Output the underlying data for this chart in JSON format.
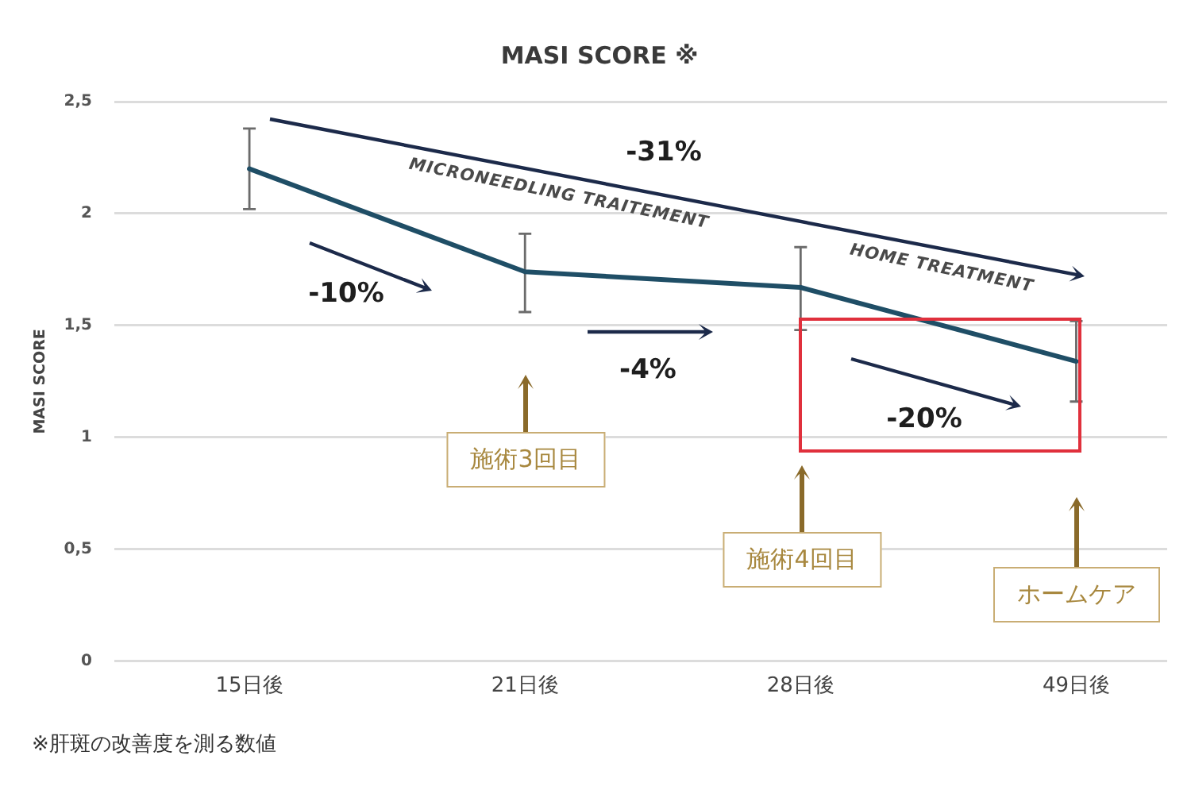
{
  "chart_data": {
    "type": "line",
    "title": "MASI SCORE ※",
    "ylabel": "MASI SCORE",
    "categories": [
      "15日後",
      "21日後",
      "28日後",
      "49日後"
    ],
    "series": [
      {
        "color": "#1f4e66",
        "values": [
          2.2,
          1.74,
          1.67,
          1.34
        ],
        "errors": [
          [
            2.02,
            2.38
          ],
          [
            1.56,
            1.91
          ],
          [
            1.48,
            1.85
          ],
          [
            1.16,
            1.52
          ]
        ]
      }
    ],
    "ylim": [
      0,
      2.5
    ],
    "yticks": [
      0,
      {
        "value": 0.5,
        "label": "0,5"
      },
      1,
      {
        "value": 1.5,
        "label": "1,5"
      },
      2,
      {
        "value": 2.5,
        "label": "2,5"
      }
    ],
    "grid": "y",
    "marker": "none",
    "annotations": [
      "-31%",
      "MICRONEEDLING TRAITEMENT",
      "HOME TREATMENT",
      "-10%",
      "-4%",
      "-20%",
      "施術3回目",
      "施術4回目",
      "ホームケア",
      "※肝斑の改善度を測る数値"
    ]
  }
}
